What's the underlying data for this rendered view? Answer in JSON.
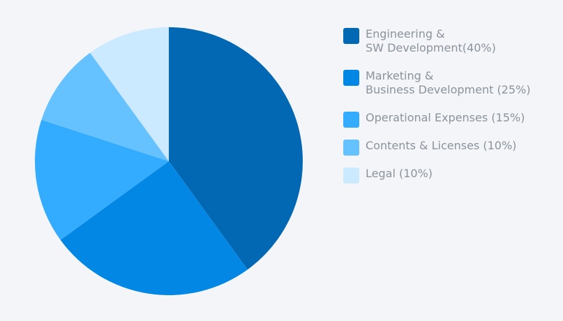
{
  "chart_data": {
    "type": "pie",
    "slices": [
      {
        "label": "Engineering & SW Development(40%)",
        "legend_lines": [
          "Engineering &",
          "SW Development(40%)"
        ],
        "value": 40,
        "color": "#0268b3"
      },
      {
        "label": "Marketing & Business Development (25%)",
        "legend_lines": [
          "Marketing &",
          "Business Development (25%)"
        ],
        "value": 25,
        "color": "#0287e5"
      },
      {
        "label": "Operational Expenses (15%)",
        "legend_lines": [
          "Operational Expenses (15%)"
        ],
        "value": 15,
        "color": "#33acff"
      },
      {
        "label": "Contents & Licenses (10%)",
        "legend_lines": [
          "Contents & Licenses (10%)"
        ],
        "value": 10,
        "color": "#66c2ff"
      },
      {
        "label": "Legal (10%)",
        "legend_lines": [
          "Legal (10%)"
        ],
        "value": 10,
        "color": "#cceaff"
      }
    ],
    "start_angle_deg": 0,
    "direction": "clockwise",
    "legend_position": "right"
  }
}
